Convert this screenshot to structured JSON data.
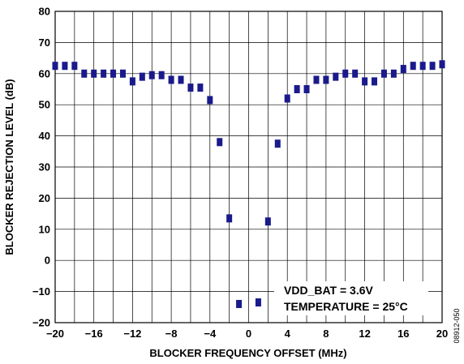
{
  "chart_data": {
    "type": "scatter",
    "xlabel": "BLOCKER FREQUENCY OFFSET (MHz)",
    "ylabel": "BLOCKER REJECTION LEVEL (dB)",
    "xlim": [
      -20,
      20
    ],
    "ylim": [
      -20,
      80
    ],
    "x_ticks": [
      -20,
      -16,
      -12,
      -8,
      -4,
      0,
      4,
      8,
      12,
      16,
      20
    ],
    "y_ticks": [
      -20,
      -10,
      0,
      10,
      20,
      30,
      40,
      50,
      60,
      70,
      80
    ],
    "grid": true,
    "marker_color": "#1a1a8c",
    "series": [
      {
        "x": [
          -20,
          -19,
          -18,
          -17,
          -16,
          -15,
          -14,
          -13,
          -12,
          -11,
          -10,
          -9,
          -8,
          -7,
          -6,
          -5,
          -4,
          -3,
          -2,
          -1,
          1,
          2,
          3,
          4,
          5,
          6,
          7,
          8,
          9,
          10,
          11,
          12,
          13,
          14,
          15,
          16,
          17,
          18,
          19,
          20
        ],
        "y": [
          62.5,
          62.5,
          62.5,
          60,
          60,
          60,
          60,
          60,
          57.5,
          59,
          59.5,
          59.5,
          58,
          58,
          55.5,
          55.5,
          51.5,
          38,
          13.5,
          -14,
          -13.5,
          12.5,
          37.5,
          52,
          55,
          55,
          58,
          58,
          59,
          60,
          60,
          57.5,
          57.5,
          60,
          60,
          61.5,
          62.5,
          62.5,
          62.5,
          63
        ]
      }
    ],
    "annotations": [
      "VDD_BAT = 3.6V",
      "TEMPERATURE = 25°C"
    ]
  },
  "figure_id": "08912-050"
}
